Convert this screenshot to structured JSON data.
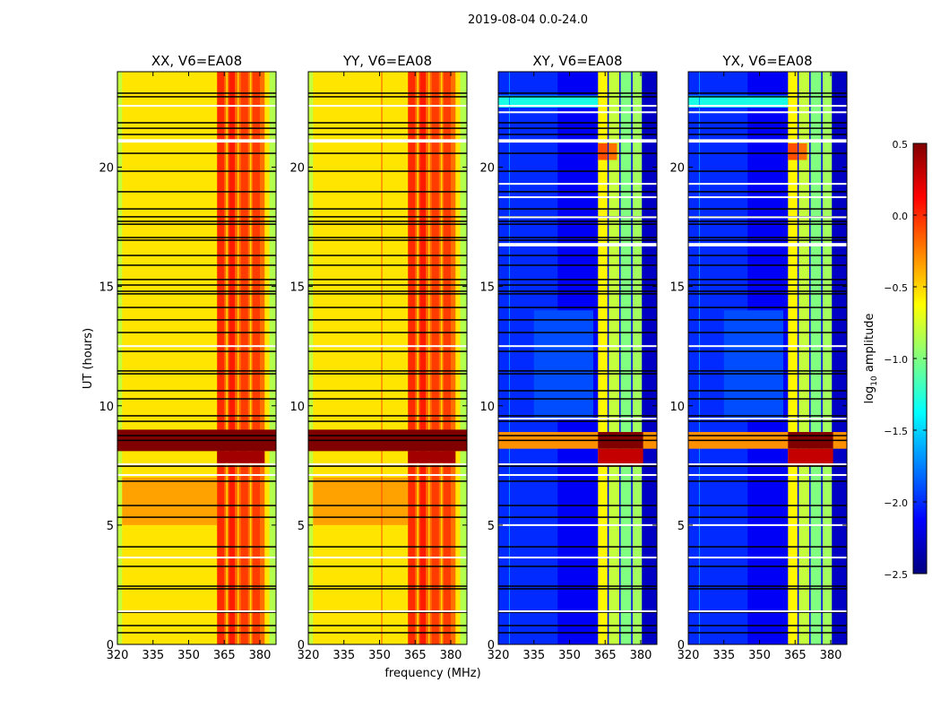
{
  "chart_data": {
    "type": "heatmap",
    "title": "2019-08-04 0.0-24.0",
    "xlabel": "frequency (MHz)",
    "ylabel": "UT (hours)",
    "xlim": [
      320,
      386.8
    ],
    "ylim": [
      0,
      24
    ],
    "xticks": [
      320,
      335,
      350,
      365,
      380
    ],
    "yticks": [
      0,
      5,
      10,
      15,
      20
    ],
    "colorbar": {
      "label_main": "log",
      "label_sub": "10",
      "label_rest": " amplitude",
      "clim": [
        -2.5,
        0.5
      ],
      "colormap": "jet",
      "ticks": [
        0.5,
        0.0,
        -0.5,
        -1.0,
        -1.5,
        -2.0,
        -2.5
      ],
      "tick_labels": [
        "0.5",
        "0.0",
        "−0.5",
        "−1.0",
        "−1.5",
        "−2.0",
        "−2.5"
      ]
    },
    "flags": {
      "black_lines_hours": [
        23.1,
        22.95,
        21.86,
        21.63,
        21.37,
        20.58,
        19.83,
        18.97,
        18.25,
        17.92,
        17.73,
        17.61,
        17.05,
        16.94,
        16.3,
        15.89,
        15.29,
        15.06,
        14.8,
        14.69,
        14.12,
        13.6,
        13.07,
        12.28,
        11.46,
        11.34,
        10.63,
        10.29,
        9.58,
        9.35,
        8.55,
        8.75,
        7.47,
        6.84,
        5.82,
        5.33,
        4.09,
        3.27,
        2.44,
        2.33,
        1.35,
        0.79,
        0.49
      ],
      "white_lines_hours": [
        22.57,
        12.5,
        7.55,
        7.1,
        3.64,
        1.39
      ],
      "white_bands_hours": [
        [
          21.03,
          21.17
        ]
      ],
      "cross_extra_white_hours": [
        5.0,
        9.46,
        19.3,
        18.74,
        22.3,
        17.9
      ],
      "cross_extra_white_bands_hours": [
        [
          16.68,
          16.82
        ]
      ]
    },
    "panels": [
      {
        "title": "XX, V6=EA08",
        "layers": [
          {
            "t": [
              0,
              24
            ],
            "f": [
              320,
              386.8
            ],
            "v": -0.55
          },
          {
            "t": [
              0,
              24
            ],
            "f": [
              320,
              322
            ],
            "v": -0.8
          },
          {
            "t": [
              0,
              24
            ],
            "f": [
              384,
              386.8
            ],
            "v": -0.85
          },
          {
            "t": [
              5,
              7
            ],
            "f": [
              322,
              362
            ],
            "v": -0.35
          },
          {
            "t": [
              0,
              24
            ],
            "f": [
              362,
              382
            ],
            "v": -0.2
          },
          {
            "t": [
              0,
              24
            ],
            "f": [
              362,
              365
            ],
            "v": 0.0
          },
          {
            "t": [
              0,
              24
            ],
            "f": [
              367,
              369.5
            ],
            "v": 0.05
          },
          {
            "t": [
              0,
              24
            ],
            "f": [
              372,
              375
            ],
            "v": -0.05
          },
          {
            "t": [
              0,
              24
            ],
            "f": [
              377,
              380
            ],
            "v": -0.05
          },
          {
            "t": [
              0,
              24
            ],
            "f": [
              365.8,
              366.4
            ],
            "v": -0.5
          },
          {
            "t": [
              0,
              24
            ],
            "f": [
              370.6,
              371.1
            ],
            "v": -0.5
          },
          {
            "t": [
              0,
              24
            ],
            "f": [
              375.8,
              376.4
            ],
            "v": -0.5
          },
          {
            "t": [
              7.6,
              8.1
            ],
            "f": [
              362,
              382
            ],
            "v": 0.4
          },
          {
            "t": [
              8.1,
              9.0
            ],
            "f": [
              320,
              386.8
            ],
            "v": 0.5
          }
        ]
      },
      {
        "title": "YY, V6=EA08",
        "layers": [
          {
            "t": [
              0,
              24
            ],
            "f": [
              320,
              386.8
            ],
            "v": -0.55
          },
          {
            "t": [
              0,
              24
            ],
            "f": [
              320,
              322
            ],
            "v": -0.8
          },
          {
            "t": [
              0,
              24
            ],
            "f": [
              384,
              386.8
            ],
            "v": -0.85
          },
          {
            "t": [
              5,
              7
            ],
            "f": [
              322,
              362
            ],
            "v": -0.35
          },
          {
            "t": [
              0,
              24
            ],
            "f": [
              350.8,
              351.1
            ],
            "v": 0.0
          },
          {
            "t": [
              0,
              24
            ],
            "f": [
              362,
              382
            ],
            "v": -0.2
          },
          {
            "t": [
              0,
              24
            ],
            "f": [
              362,
              365
            ],
            "v": 0.0
          },
          {
            "t": [
              0,
              24
            ],
            "f": [
              367,
              369.5
            ],
            "v": 0.05
          },
          {
            "t": [
              0,
              24
            ],
            "f": [
              372,
              375
            ],
            "v": -0.05
          },
          {
            "t": [
              0,
              24
            ],
            "f": [
              377,
              380
            ],
            "v": -0.05
          },
          {
            "t": [
              0,
              24
            ],
            "f": [
              365.8,
              366.4
            ],
            "v": -0.5
          },
          {
            "t": [
              0,
              24
            ],
            "f": [
              370.6,
              371.1
            ],
            "v": -0.5
          },
          {
            "t": [
              0,
              24
            ],
            "f": [
              375.8,
              376.4
            ],
            "v": -0.5
          },
          {
            "t": [
              7.6,
              8.1
            ],
            "f": [
              362,
              382
            ],
            "v": 0.4
          },
          {
            "t": [
              8.1,
              9.0
            ],
            "f": [
              320,
              386.8
            ],
            "v": 0.5
          }
        ]
      },
      {
        "title": "XY, V6=EA08",
        "cross": true,
        "layers": [
          {
            "t": [
              0,
              24
            ],
            "f": [
              320,
              386.8
            ],
            "v": -2.15
          },
          {
            "t": [
              0,
              24
            ],
            "f": [
              320,
              345
            ],
            "v": -2.0
          },
          {
            "t": [
              9.5,
              14
            ],
            "f": [
              335,
              360
            ],
            "v": -1.9
          },
          {
            "t": [
              22.5,
              23.0
            ],
            "f": [
              320,
              362
            ],
            "v": -1.3
          },
          {
            "t": [
              0,
              24
            ],
            "f": [
              324.5,
              324.9
            ],
            "v": -1.7
          },
          {
            "t": [
              0,
              24
            ],
            "f": [
              362,
              366
            ],
            "v": -0.6
          },
          {
            "t": [
              0,
              24
            ],
            "f": [
              366.5,
              371
            ],
            "v": -0.8
          },
          {
            "t": [
              0,
              24
            ],
            "f": [
              371.5,
              376
            ],
            "v": -1.0
          },
          {
            "t": [
              0,
              24
            ],
            "f": [
              376.5,
              380.5
            ],
            "v": -0.9
          },
          {
            "t": [
              0,
              24
            ],
            "f": [
              366,
              366.5
            ],
            "v": -2.2
          },
          {
            "t": [
              0,
              24
            ],
            "f": [
              371,
              371.5
            ],
            "v": -2.2
          },
          {
            "t": [
              0,
              24
            ],
            "f": [
              376,
              376.5
            ],
            "v": -2.2
          },
          {
            "t": [
              0,
              24
            ],
            "f": [
              380.5,
              386.8
            ],
            "v": -2.3
          },
          {
            "t": [
              20.3,
              21.0
            ],
            "f": [
              362,
              366
            ],
            "v": -0.1
          },
          {
            "t": [
              20.3,
              21.0
            ],
            "f": [
              366.5,
              370
            ],
            "v": -0.2
          },
          {
            "t": [
              7.5,
              8.2
            ],
            "f": [
              362,
              381
            ],
            "v": 0.3
          },
          {
            "t": [
              8.2,
              8.9
            ],
            "f": [
              320,
              386.8
            ],
            "v": -0.3
          },
          {
            "t": [
              8.2,
              8.9
            ],
            "f": [
              362,
              381
            ],
            "v": 0.5
          }
        ]
      },
      {
        "title": "YX, V6=EA08",
        "cross": true,
        "layers": [
          {
            "t": [
              0,
              24
            ],
            "f": [
              320,
              386.8
            ],
            "v": -2.15
          },
          {
            "t": [
              0,
              24
            ],
            "f": [
              320,
              345
            ],
            "v": -2.0
          },
          {
            "t": [
              9.5,
              14
            ],
            "f": [
              335,
              360
            ],
            "v": -1.9
          },
          {
            "t": [
              22.5,
              23.0
            ],
            "f": [
              320,
              362
            ],
            "v": -1.3
          },
          {
            "t": [
              0,
              24
            ],
            "f": [
              324.5,
              324.9
            ],
            "v": -1.7
          },
          {
            "t": [
              0,
              24
            ],
            "f": [
              362,
              366
            ],
            "v": -0.6
          },
          {
            "t": [
              0,
              24
            ],
            "f": [
              366.5,
              371
            ],
            "v": -0.8
          },
          {
            "t": [
              0,
              24
            ],
            "f": [
              371.5,
              376
            ],
            "v": -1.0
          },
          {
            "t": [
              0,
              24
            ],
            "f": [
              376.5,
              380.5
            ],
            "v": -0.9
          },
          {
            "t": [
              0,
              24
            ],
            "f": [
              366,
              366.5
            ],
            "v": -2.2
          },
          {
            "t": [
              0,
              24
            ],
            "f": [
              371,
              371.5
            ],
            "v": -2.2
          },
          {
            "t": [
              0,
              24
            ],
            "f": [
              376,
              376.5
            ],
            "v": -2.2
          },
          {
            "t": [
              0,
              24
            ],
            "f": [
              380.5,
              386.8
            ],
            "v": -2.3
          },
          {
            "t": [
              20.3,
              21.0
            ],
            "f": [
              362,
              366
            ],
            "v": -0.1
          },
          {
            "t": [
              20.3,
              21.0
            ],
            "f": [
              366.5,
              370
            ],
            "v": -0.2
          },
          {
            "t": [
              7.5,
              8.2
            ],
            "f": [
              362,
              381
            ],
            "v": 0.3
          },
          {
            "t": [
              8.2,
              8.9
            ],
            "f": [
              320,
              386.8
            ],
            "v": -0.3
          },
          {
            "t": [
              8.2,
              8.9
            ],
            "f": [
              362,
              381
            ],
            "v": 0.5
          }
        ]
      }
    ]
  }
}
